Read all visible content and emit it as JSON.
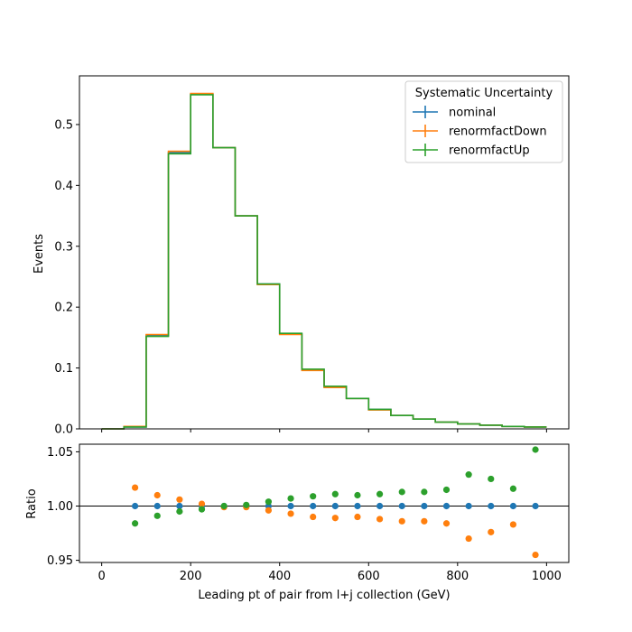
{
  "chart_data": {
    "type": "step-hist-with-ratio",
    "bin_edges": [
      0,
      50,
      100,
      150,
      200,
      250,
      300,
      350,
      400,
      450,
      500,
      550,
      600,
      650,
      700,
      750,
      800,
      850,
      900,
      950,
      1000
    ],
    "xlabel": "Leading pt of pair from l+j collection (GeV)",
    "xlim": [
      -50,
      1050
    ],
    "xticks": [
      "0",
      "200",
      "400",
      "600",
      "800",
      "1000"
    ],
    "xtick_values": [
      0,
      200,
      400,
      600,
      800,
      1000
    ],
    "top": {
      "ylabel": "Events",
      "ylim": [
        0,
        0.58
      ],
      "yticks": [
        "0.0",
        "0.1",
        "0.2",
        "0.3",
        "0.4",
        "0.5"
      ],
      "ytick_values": [
        0.0,
        0.1,
        0.2,
        0.3,
        0.4,
        0.5
      ],
      "series": [
        {
          "name": "nominal",
          "color": "#1f77b4",
          "values": [
            0.0,
            0.003,
            0.153,
            0.454,
            0.55,
            0.462,
            0.35,
            0.238,
            0.156,
            0.097,
            0.069,
            0.05,
            0.032,
            0.022,
            0.016,
            0.011,
            0.008,
            0.006,
            0.004,
            0.003
          ]
        },
        {
          "name": "renormfactDown",
          "color": "#ff7f0e",
          "values": [
            0.0,
            0.004,
            0.155,
            0.456,
            0.551,
            0.462,
            0.35,
            0.237,
            0.155,
            0.096,
            0.068,
            0.05,
            0.031,
            0.022,
            0.016,
            0.011,
            0.008,
            0.006,
            0.004,
            0.003
          ]
        },
        {
          "name": "renormfactUp",
          "color": "#2ca02c",
          "values": [
            0.0,
            0.003,
            0.152,
            0.452,
            0.549,
            0.462,
            0.35,
            0.238,
            0.157,
            0.098,
            0.07,
            0.05,
            0.032,
            0.022,
            0.016,
            0.011,
            0.008,
            0.006,
            0.004,
            0.003
          ]
        }
      ]
    },
    "ratio": {
      "ylabel": "Ratio",
      "ylim": [
        0.948,
        1.057
      ],
      "yticks": [
        "0.95",
        "1.00",
        "1.05"
      ],
      "ytick_values": [
        0.95,
        1.0,
        1.05
      ],
      "reference_line": 1.0,
      "x": [
        75,
        125,
        175,
        225,
        275,
        325,
        375,
        425,
        475,
        525,
        575,
        625,
        675,
        725,
        775,
        825,
        875,
        925,
        975
      ],
      "series": [
        {
          "name": "nominal",
          "color": "#1f77b4",
          "values": [
            1.0,
            1.0,
            1.0,
            1.0,
            1.0,
            1.0,
            1.0,
            1.0,
            1.0,
            1.0,
            1.0,
            1.0,
            1.0,
            1.0,
            1.0,
            1.0,
            1.0,
            1.0,
            1.0
          ]
        },
        {
          "name": "renormfactDown",
          "color": "#ff7f0e",
          "values": [
            1.017,
            1.01,
            1.006,
            1.002,
            0.999,
            0.999,
            0.996,
            0.993,
            0.99,
            0.989,
            0.99,
            0.988,
            0.986,
            0.986,
            0.984,
            0.97,
            0.976,
            0.983,
            0.955
          ]
        },
        {
          "name": "renormfactUp",
          "color": "#2ca02c",
          "values": [
            0.984,
            0.991,
            0.995,
            0.997,
            1.0,
            1.001,
            1.004,
            1.007,
            1.009,
            1.011,
            1.01,
            1.011,
            1.013,
            1.013,
            1.015,
            1.029,
            1.025,
            1.016,
            1.052
          ]
        }
      ]
    },
    "legend": {
      "title": "Systematic Uncertainty",
      "placement": "top-right",
      "entries": [
        "nominal",
        "renormfactDown",
        "renormfactUp"
      ]
    }
  }
}
